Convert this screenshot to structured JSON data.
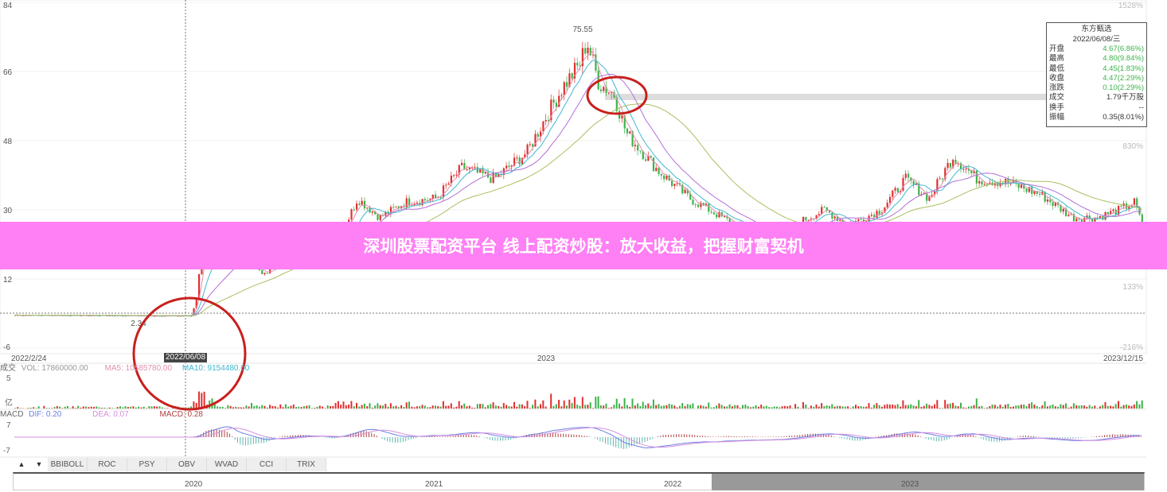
{
  "chart_data": {
    "type": "candlestick",
    "y_axis_left": {
      "ticks": [
        84,
        66,
        48,
        30,
        12,
        -6
      ],
      "range": [
        -6,
        84
      ]
    },
    "y_axis_right": {
      "ticks": [
        "1528%",
        "830%",
        "133%",
        "-216%"
      ]
    },
    "x_axis": {
      "labels": [
        "2022/2/24",
        "2023",
        "2023/12/15"
      ],
      "range": [
        "2022-02-24",
        "2023-12-15"
      ]
    },
    "price_path": [
      [
        "2022-02-24",
        2.6
      ],
      [
        "2022-06-07",
        2.4
      ],
      [
        "2022-06-10",
        7
      ],
      [
        "2022-06-15",
        28
      ],
      [
        "2022-06-20",
        17
      ],
      [
        "2022-07-10",
        17
      ],
      [
        "2022-07-20",
        13
      ],
      [
        "2022-07-30",
        17
      ],
      [
        "2022-08-20",
        17
      ],
      [
        "2022-08-28",
        16
      ],
      [
        "2022-09-04",
        25
      ],
      [
        "2022-09-12",
        33
      ],
      [
        "2022-09-25",
        28
      ],
      [
        "2022-10-10",
        32
      ],
      [
        "2022-10-28",
        33
      ],
      [
        "2022-11-12",
        41
      ],
      [
        "2022-12-01",
        38
      ],
      [
        "2022-12-20",
        45
      ],
      [
        "2023-01-01",
        55
      ],
      [
        "2023-01-10",
        62
      ],
      [
        "2023-01-20",
        68
      ],
      [
        "2023-01-24",
        74
      ],
      [
        "2023-01-31",
        63
      ],
      [
        "2023-02-09",
        60
      ],
      [
        "2023-02-16",
        50
      ],
      [
        "2023-03-07",
        40
      ],
      [
        "2023-03-25",
        33
      ],
      [
        "2023-04-13",
        28
      ],
      [
        "2023-05-01",
        24
      ],
      [
        "2023-05-20",
        22
      ],
      [
        "2023-05-29",
        27
      ],
      [
        "2023-06-12",
        30
      ],
      [
        "2023-06-26",
        26
      ],
      [
        "2023-07-15",
        30
      ],
      [
        "2023-07-29",
        38
      ],
      [
        "2023-08-12",
        33
      ],
      [
        "2023-08-26",
        44
      ],
      [
        "2023-09-09",
        38
      ],
      [
        "2023-09-28",
        37
      ],
      [
        "2023-10-16",
        34
      ],
      [
        "2023-11-04",
        28
      ],
      [
        "2023-11-18",
        28
      ],
      [
        "2023-12-01",
        30
      ],
      [
        "2023-12-10",
        32
      ],
      [
        "2023-12-15",
        25
      ]
    ],
    "annotations": {
      "high": "75.55",
      "low": "2.34",
      "crosshair_date": "2022/06/08"
    },
    "colors": {
      "up": "#e03030",
      "down": "#3bb34a",
      "ma5": "#e38fb0",
      "ma10": "#41b8d0",
      "ma20": "#b36fd6",
      "ma60": "#a8c060"
    }
  },
  "info_box": {
    "name": "东方甄选",
    "date": "2022/06/08/三",
    "rows": [
      {
        "label": "开盘",
        "value": "4.67(6.86%)",
        "green": true
      },
      {
        "label": "最高",
        "value": "4.80(9.84%)",
        "green": true
      },
      {
        "label": "最低",
        "value": "4.45(1.83%)",
        "green": true
      },
      {
        "label": "收盘",
        "value": "4.47(2.29%)",
        "green": true
      },
      {
        "label": "涨跌",
        "value": "0.10(2.29%)",
        "green": true
      },
      {
        "label": "成交",
        "value": "1.79千万股",
        "green": false
      },
      {
        "label": "换手",
        "value": "--",
        "green": false
      },
      {
        "label": "振幅",
        "value": "0.35(8.01%)",
        "green": false
      }
    ]
  },
  "volume": {
    "label": "成交",
    "vol": "VOL: 17860000.00",
    "ma5": "MA5: 10585780.00",
    "ma10": "MA10: 9154480.00",
    "tick_top": "5",
    "tick_unit": "亿"
  },
  "macd": {
    "label": "MACD",
    "dif": "DIF: 0.20",
    "dea": "DEA: 0.07",
    "macd": "MACD: 0.28",
    "tick_top": "7",
    "tick_bottom": "-7"
  },
  "tabs": [
    "BBIBOLL",
    "ROC",
    "PSY",
    "OBV",
    "WVAD",
    "CCI",
    "TRIX"
  ],
  "navigator": {
    "years": [
      "2020",
      "2021",
      "2022",
      "2023"
    ]
  },
  "banner": {
    "text": "深圳股票配资平台 线上配资炒股：放大收益，把握财富契机"
  }
}
